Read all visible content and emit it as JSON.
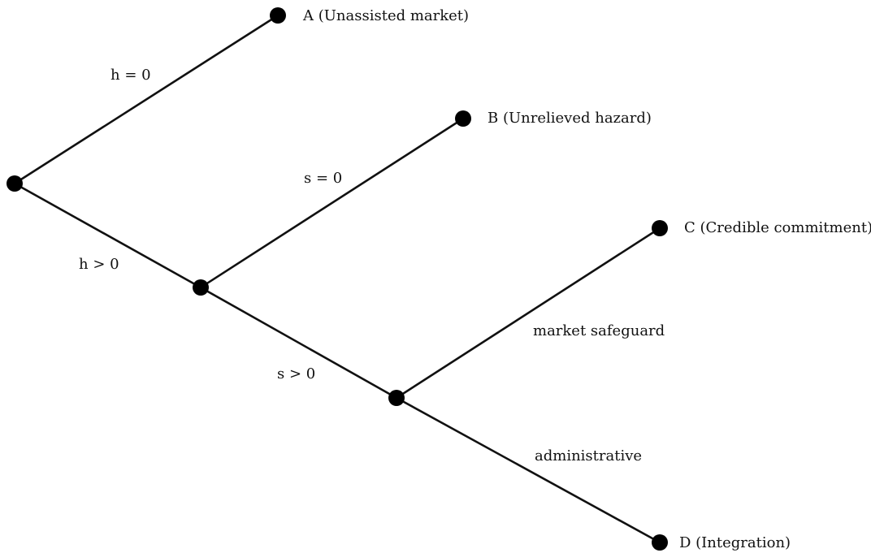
{
  "diagram": {
    "outcomes": {
      "a": "A (Unassisted market)",
      "b": "B (Unrelieved hazard)",
      "c": "C (Credible commitment)",
      "d": "D (Integration)"
    },
    "edges": {
      "h_zero": "h = 0",
      "h_positive": "h > 0",
      "s_zero": "s = 0",
      "s_positive": "s > 0",
      "market_safeguard": "market safeguard",
      "administrative": "administrative"
    },
    "colors": {
      "line": "#111111",
      "node": "#000000",
      "background": "#ffffff"
    }
  }
}
